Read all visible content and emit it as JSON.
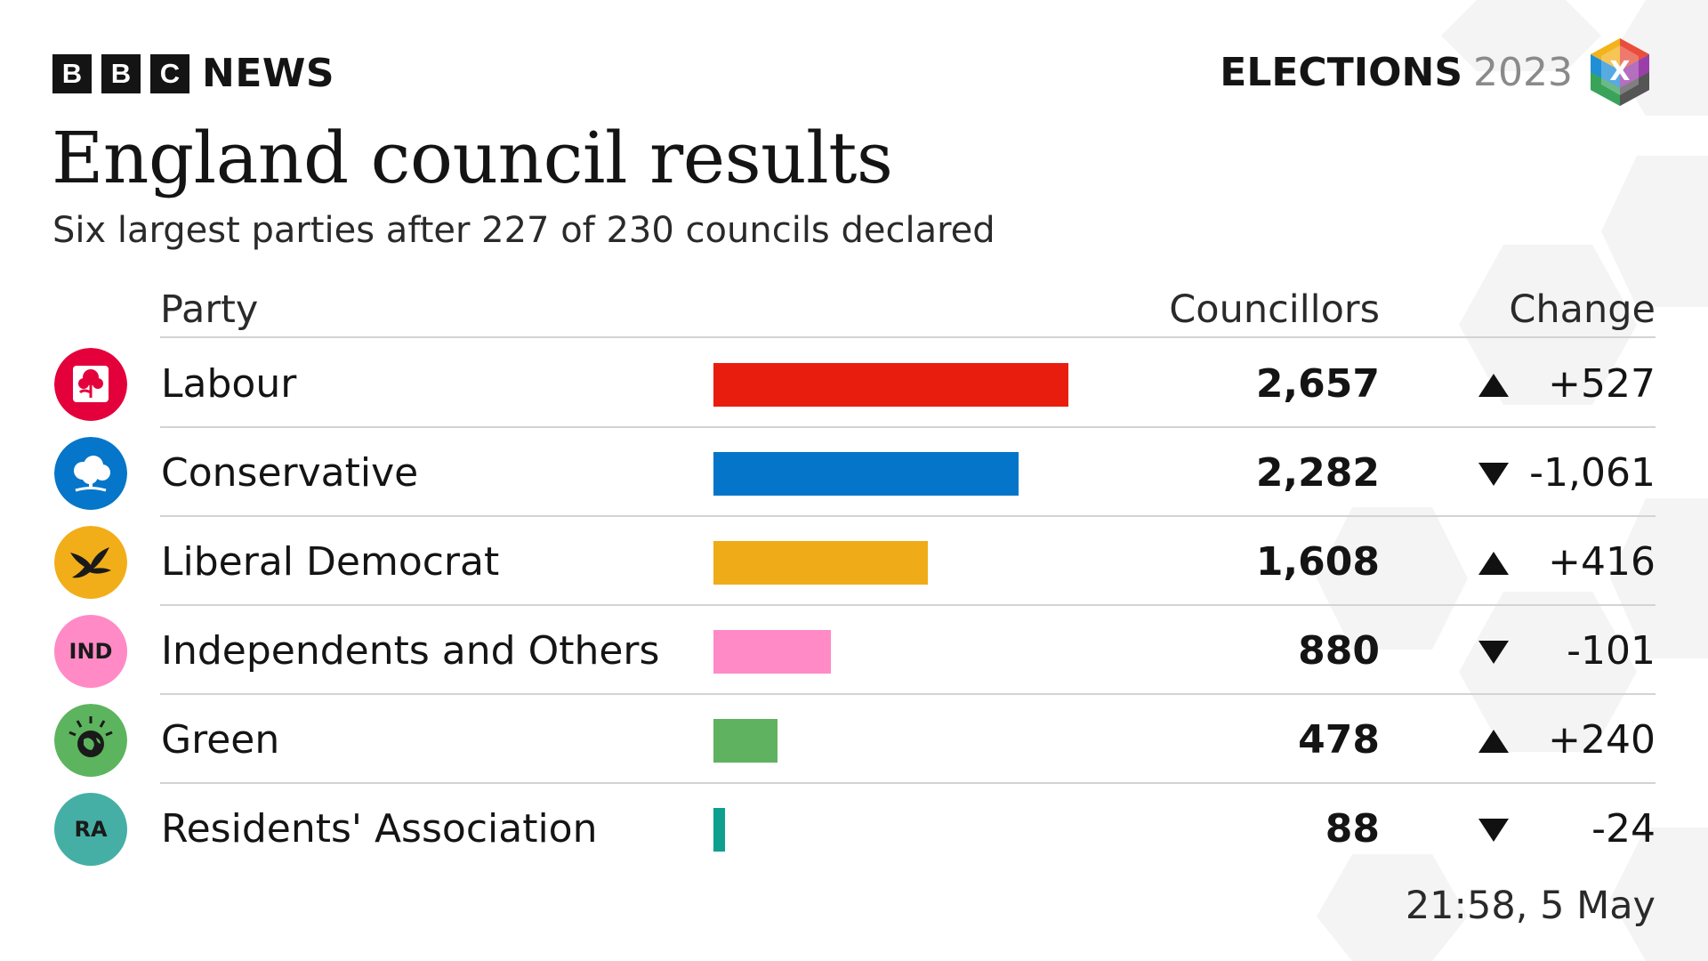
{
  "brand": {
    "letters": [
      "B",
      "B",
      "C"
    ],
    "news": "NEWS"
  },
  "elections": {
    "word": "ELECTIONS",
    "year": "2023",
    "cube_letter": "X"
  },
  "header": {
    "title": "England council results",
    "subtitle": "Six largest parties after 227 of 230 councils declared"
  },
  "columns": {
    "party": "Party",
    "councillors": "Councillors",
    "change": "Change"
  },
  "chart_data": {
    "type": "bar",
    "orientation": "horizontal",
    "title": "England council results",
    "subtitle": "Six largest parties after 227 of 230 councils declared",
    "categories": [
      "Labour",
      "Conservative",
      "Liberal Democrat",
      "Independents and Others",
      "Green",
      "Residents' Association"
    ],
    "values": [
      2657,
      2282,
      1608,
      880,
      478,
      88
    ],
    "change": [
      527,
      -1061,
      416,
      -101,
      240,
      -24
    ],
    "grid": false,
    "legend": "none"
  },
  "rows": [
    {
      "party": "Labour",
      "value": 2657,
      "councillors_label": "2,657",
      "change_label": "+527",
      "direction": "up",
      "color": "#E91D0E",
      "badge": "rose",
      "badge_text": ""
    },
    {
      "party": "Conservative",
      "value": 2282,
      "councillors_label": "2,282",
      "change_label": "-1,061",
      "direction": "down",
      "color": "#0575C9",
      "badge": "tree",
      "badge_text": ""
    },
    {
      "party": "Liberal Democrat",
      "value": 1608,
      "councillors_label": "1,608",
      "change_label": "+416",
      "direction": "up",
      "color": "#EFAC18",
      "badge": "bird",
      "badge_text": ""
    },
    {
      "party": "Independents and Others",
      "value": 880,
      "councillors_label": "880",
      "change_label": "-101",
      "direction": "down",
      "color": "#FF8AC6",
      "badge": "text",
      "badge_text": "IND"
    },
    {
      "party": "Green",
      "value": 478,
      "councillors_label": "478",
      "change_label": "+240",
      "direction": "up",
      "color": "#5FB25F",
      "badge": "earth",
      "badge_text": ""
    },
    {
      "party": "Residents' Association",
      "value": 88,
      "councillors_label": "88",
      "change_label": "-24",
      "direction": "down",
      "color": "#0E9F8E",
      "badge": "text",
      "badge_text": "RA",
      "badge_color": "#45AFA5"
    }
  ],
  "timestamp": "21:58,  5 May"
}
